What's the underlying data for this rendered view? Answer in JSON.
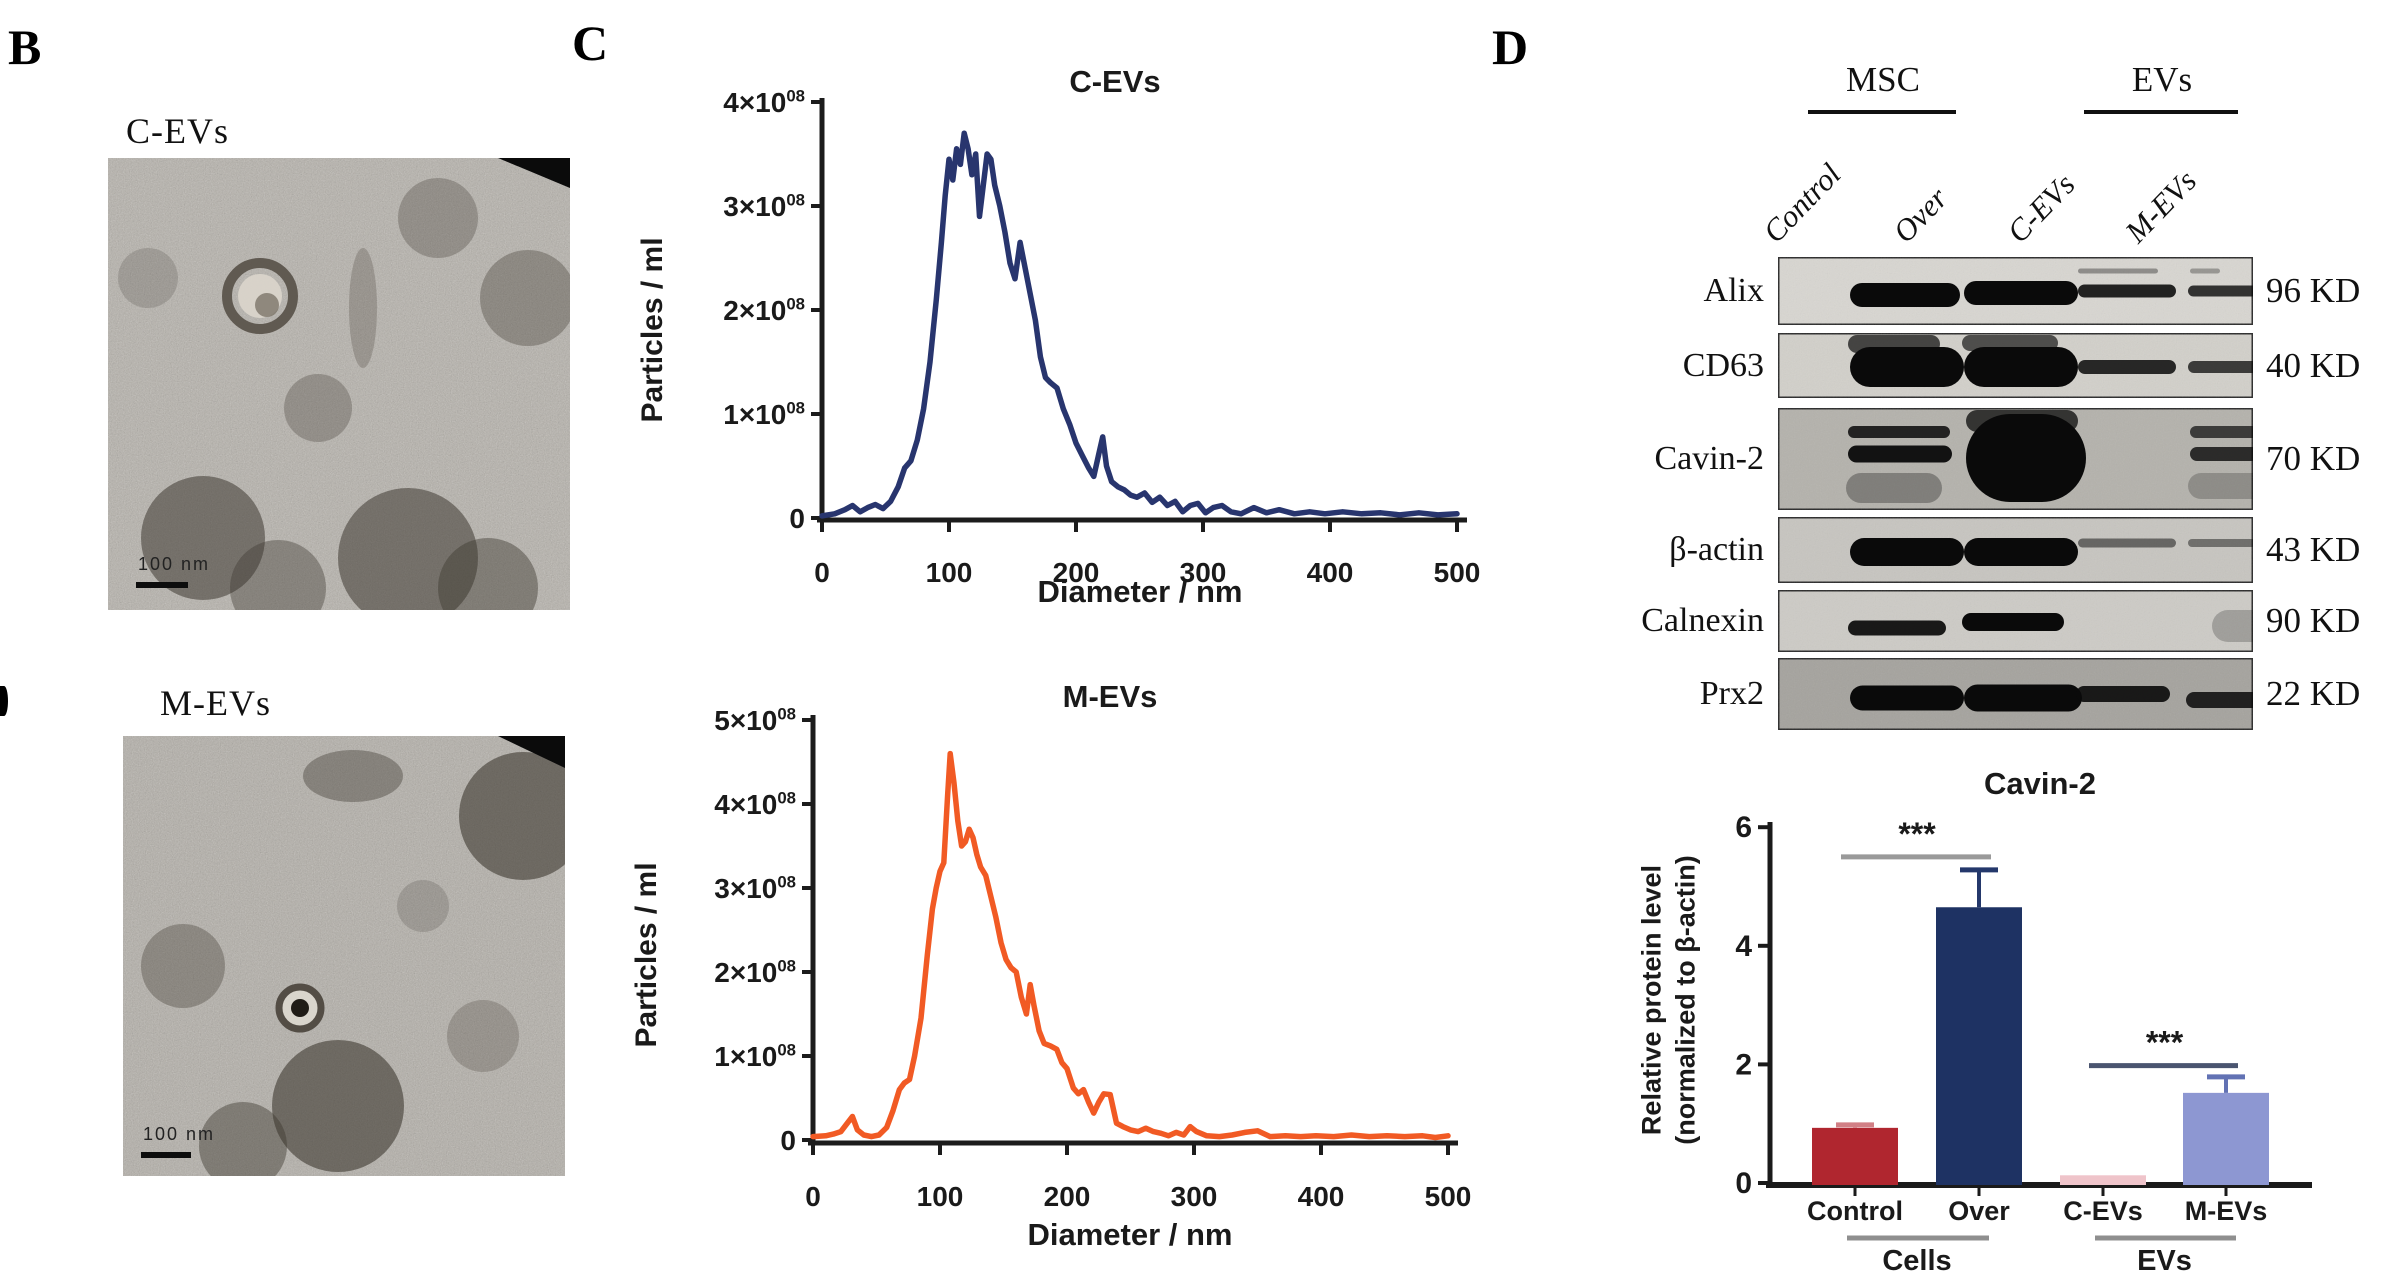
{
  "figure": {
    "background": "#ffffff"
  },
  "panels": {
    "B": {
      "label": "B",
      "images": [
        {
          "title": "C-EVs",
          "scale_bar": "100 nm",
          "description": "TEM micrograph of C-EVs with single cup-shaped vesicle"
        },
        {
          "title": "M-EVs",
          "scale_bar": "100 nm",
          "description": "TEM micrograph of M-EVs with single small vesicle"
        }
      ]
    },
    "C": {
      "label": "C"
    },
    "D": {
      "label": "D"
    }
  },
  "chart_data": [
    {
      "type": "line",
      "id": "nta-cevs",
      "title": "C-EVs",
      "xlabel": "Diameter / nm",
      "ylabel": "Particles / ml",
      "line_color": "#28356e",
      "axis_color": "#1c1c1c",
      "xlim": [
        0,
        500
      ],
      "ylim_1e8": [
        0,
        4
      ],
      "xticks": [
        "0",
        "100",
        "200",
        "300",
        "400",
        "500"
      ],
      "yticks": [
        "0",
        "1×10^08",
        "2×10^08",
        "3×10^08",
        "4×10^08"
      ],
      "grid": false,
      "points_1e8": [
        [
          0,
          0.02
        ],
        [
          10,
          0.04
        ],
        [
          18,
          0.08
        ],
        [
          24,
          0.12
        ],
        [
          30,
          0.06
        ],
        [
          36,
          0.1
        ],
        [
          42,
          0.13
        ],
        [
          48,
          0.09
        ],
        [
          54,
          0.16
        ],
        [
          60,
          0.3
        ],
        [
          65,
          0.48
        ],
        [
          70,
          0.55
        ],
        [
          75,
          0.75
        ],
        [
          80,
          1.05
        ],
        [
          85,
          1.5
        ],
        [
          90,
          2.1
        ],
        [
          94,
          2.65
        ],
        [
          97,
          3.1
        ],
        [
          100,
          3.45
        ],
        [
          103,
          3.25
        ],
        [
          106,
          3.55
        ],
        [
          109,
          3.4
        ],
        [
          112,
          3.7
        ],
        [
          115,
          3.55
        ],
        [
          118,
          3.3
        ],
        [
          121,
          3.5
        ],
        [
          124,
          2.9
        ],
        [
          127,
          3.2
        ],
        [
          130,
          3.5
        ],
        [
          133,
          3.45
        ],
        [
          136,
          3.2
        ],
        [
          140,
          3.0
        ],
        [
          144,
          2.75
        ],
        [
          148,
          2.45
        ],
        [
          152,
          2.3
        ],
        [
          156,
          2.65
        ],
        [
          160,
          2.4
        ],
        [
          164,
          2.15
        ],
        [
          168,
          1.9
        ],
        [
          172,
          1.55
        ],
        [
          176,
          1.35
        ],
        [
          180,
          1.3
        ],
        [
          185,
          1.25
        ],
        [
          190,
          1.05
        ],
        [
          195,
          0.9
        ],
        [
          200,
          0.72
        ],
        [
          205,
          0.6
        ],
        [
          210,
          0.48
        ],
        [
          214,
          0.4
        ],
        [
          218,
          0.62
        ],
        [
          221,
          0.78
        ],
        [
          224,
          0.5
        ],
        [
          228,
          0.35
        ],
        [
          233,
          0.3
        ],
        [
          238,
          0.27
        ],
        [
          243,
          0.22
        ],
        [
          248,
          0.2
        ],
        [
          254,
          0.24
        ],
        [
          260,
          0.15
        ],
        [
          266,
          0.2
        ],
        [
          272,
          0.12
        ],
        [
          278,
          0.16
        ],
        [
          284,
          0.06
        ],
        [
          290,
          0.12
        ],
        [
          296,
          0.14
        ],
        [
          302,
          0.05
        ],
        [
          308,
          0.1
        ],
        [
          315,
          0.12
        ],
        [
          322,
          0.06
        ],
        [
          330,
          0.04
        ],
        [
          340,
          0.1
        ],
        [
          350,
          0.05
        ],
        [
          360,
          0.08
        ],
        [
          372,
          0.04
        ],
        [
          384,
          0.06
        ],
        [
          396,
          0.04
        ],
        [
          410,
          0.06
        ],
        [
          425,
          0.04
        ],
        [
          440,
          0.05
        ],
        [
          455,
          0.03
        ],
        [
          470,
          0.05
        ],
        [
          485,
          0.03
        ],
        [
          500,
          0.04
        ]
      ]
    },
    {
      "type": "line",
      "id": "nta-mevs",
      "title": "M-EVs",
      "xlabel": "Diameter / nm",
      "ylabel": "Particles / ml",
      "line_color": "#f15a24",
      "axis_color": "#1c1c1c",
      "xlim": [
        0,
        500
      ],
      "ylim_1e8": [
        0,
        5
      ],
      "xticks": [
        "0",
        "100",
        "200",
        "300",
        "400",
        "500"
      ],
      "yticks": [
        "0",
        "1×10^08",
        "2×10^08",
        "3×10^08",
        "4×10^08",
        "5×10^08"
      ],
      "grid": false,
      "points_1e8": [
        [
          0,
          0.04
        ],
        [
          10,
          0.05
        ],
        [
          16,
          0.07
        ],
        [
          22,
          0.1
        ],
        [
          27,
          0.2
        ],
        [
          31,
          0.28
        ],
        [
          35,
          0.12
        ],
        [
          40,
          0.06
        ],
        [
          46,
          0.04
        ],
        [
          52,
          0.06
        ],
        [
          58,
          0.15
        ],
        [
          63,
          0.35
        ],
        [
          68,
          0.6
        ],
        [
          72,
          0.68
        ],
        [
          76,
          0.72
        ],
        [
          80,
          1.0
        ],
        [
          85,
          1.45
        ],
        [
          90,
          2.2
        ],
        [
          94,
          2.75
        ],
        [
          97,
          3.0
        ],
        [
          100,
          3.2
        ],
        [
          103,
          3.3
        ],
        [
          106,
          4.1
        ],
        [
          108,
          4.6
        ],
        [
          111,
          4.25
        ],
        [
          114,
          3.8
        ],
        [
          117,
          3.5
        ],
        [
          120,
          3.55
        ],
        [
          123,
          3.7
        ],
        [
          126,
          3.6
        ],
        [
          129,
          3.4
        ],
        [
          132,
          3.25
        ],
        [
          136,
          3.15
        ],
        [
          140,
          2.9
        ],
        [
          144,
          2.65
        ],
        [
          148,
          2.35
        ],
        [
          152,
          2.15
        ],
        [
          156,
          2.05
        ],
        [
          160,
          2.0
        ],
        [
          164,
          1.7
        ],
        [
          168,
          1.5
        ],
        [
          171,
          1.85
        ],
        [
          174,
          1.6
        ],
        [
          178,
          1.3
        ],
        [
          182,
          1.15
        ],
        [
          187,
          1.12
        ],
        [
          192,
          1.08
        ],
        [
          196,
          0.92
        ],
        [
          200,
          0.85
        ],
        [
          205,
          0.62
        ],
        [
          209,
          0.55
        ],
        [
          213,
          0.6
        ],
        [
          217,
          0.45
        ],
        [
          221,
          0.32
        ],
        [
          225,
          0.45
        ],
        [
          229,
          0.55
        ],
        [
          234,
          0.54
        ],
        [
          239,
          0.2
        ],
        [
          244,
          0.16
        ],
        [
          250,
          0.12
        ],
        [
          256,
          0.1
        ],
        [
          262,
          0.14
        ],
        [
          268,
          0.1
        ],
        [
          274,
          0.08
        ],
        [
          280,
          0.05
        ],
        [
          286,
          0.09
        ],
        [
          292,
          0.06
        ],
        [
          297,
          0.16
        ],
        [
          302,
          0.1
        ],
        [
          310,
          0.05
        ],
        [
          320,
          0.04
        ],
        [
          330,
          0.06
        ],
        [
          340,
          0.09
        ],
        [
          350,
          0.11
        ],
        [
          360,
          0.04
        ],
        [
          372,
          0.05
        ],
        [
          384,
          0.04
        ],
        [
          396,
          0.05
        ],
        [
          410,
          0.04
        ],
        [
          424,
          0.06
        ],
        [
          438,
          0.04
        ],
        [
          452,
          0.05
        ],
        [
          466,
          0.04
        ],
        [
          480,
          0.05
        ],
        [
          490,
          0.03
        ],
        [
          500,
          0.05
        ]
      ]
    },
    {
      "type": "bar",
      "id": "cavin2-bar",
      "title": "Cavin-2",
      "ylabel": "Relative protein level\n(normalized to β-actin)",
      "categories": [
        "Control",
        "Over",
        "C-EVs",
        "M-EVs"
      ],
      "values": [
        0.93,
        4.65,
        0.13,
        1.52
      ],
      "errors_plus": [
        0.05,
        0.63,
        0,
        0.27
      ],
      "bar_colors": [
        "#b0262f",
        "#1e3263",
        "#efc4ca",
        "#8d97d2"
      ],
      "error_colors": [
        "#d17f85",
        "#24386b",
        "#efc4ca",
        "#6272b4"
      ],
      "axis_color": "#1a1a1a",
      "ylim": [
        0,
        6
      ],
      "yticks": [
        "0",
        "2",
        "4",
        "6"
      ],
      "grid": false,
      "significance": [
        {
          "stars": "***",
          "between": [
            0,
            1
          ],
          "height": 5.5,
          "color": "#9a9a9a"
        },
        {
          "stars": "***",
          "between": [
            2,
            3
          ],
          "height": 1.98,
          "color": "#4a5570"
        }
      ],
      "groups": [
        {
          "label": "Cells",
          "span": [
            0,
            1
          ]
        },
        {
          "label": "EVs",
          "span": [
            2,
            3
          ]
        }
      ]
    }
  ],
  "western_blot": {
    "group_headers": [
      {
        "label": "MSC",
        "lanes": [
          0,
          1
        ]
      },
      {
        "label": "EVs",
        "lanes": [
          2,
          3
        ]
      }
    ],
    "lanes": [
      "Control",
      "Over",
      "C-EVs",
      "M-EVs"
    ],
    "rows": [
      {
        "protein": "Alix",
        "mw": "96 KD",
        "bg": "#d8d6d1",
        "bands": [
          {
            "x": 72,
            "y": 38,
            "w": 110,
            "t": 24,
            "o": 1
          },
          {
            "x": 186,
            "y": 36,
            "w": 114,
            "t": 24,
            "o": 1
          },
          {
            "x": 300,
            "y": 34,
            "w": 98,
            "t": 13,
            "o": 0.88
          },
          {
            "x": 410,
            "y": 34,
            "w": 96,
            "t": 11,
            "o": 0.8
          },
          {
            "x": 300,
            "y": 14,
            "w": 80,
            "t": 5,
            "o": 0.35
          },
          {
            "x": 412,
            "y": 14,
            "w": 30,
            "t": 5,
            "o": 0.3
          }
        ]
      },
      {
        "protein": "CD63",
        "mw": "40 KD",
        "bg": "#d2d0ca",
        "bands": [
          {
            "x": 72,
            "y": 34,
            "w": 114,
            "t": 40,
            "o": 1
          },
          {
            "x": 70,
            "y": 10,
            "w": 92,
            "t": 18,
            "o": 0.7
          },
          {
            "x": 186,
            "y": 34,
            "w": 114,
            "t": 40,
            "o": 1
          },
          {
            "x": 184,
            "y": 8,
            "w": 96,
            "t": 16,
            "o": 0.65
          },
          {
            "x": 300,
            "y": 34,
            "w": 98,
            "t": 14,
            "o": 0.85
          },
          {
            "x": 410,
            "y": 34,
            "w": 94,
            "t": 12,
            "o": 0.75
          }
        ]
      },
      {
        "protein": "Cavin-2",
        "mw": "70 KD",
        "bg": "#b4b2ac",
        "bands": [
          {
            "x": 70,
            "y": 24,
            "w": 102,
            "t": 12,
            "o": 0.85
          },
          {
            "x": 70,
            "y": 46,
            "w": 104,
            "t": 17,
            "o": 0.95
          },
          {
            "x": 68,
            "y": 80,
            "w": 96,
            "t": 30,
            "o": 0.3
          },
          {
            "x": 188,
            "y": 50,
            "w": 120,
            "t": 88,
            "o": 1
          },
          {
            "x": 188,
            "y": 8,
            "w": 112,
            "t": 22,
            "o": 0.75
          },
          {
            "x": 412,
            "y": 24,
            "w": 102,
            "t": 12,
            "o": 0.7
          },
          {
            "x": 412,
            "y": 46,
            "w": 102,
            "t": 14,
            "o": 0.8
          },
          {
            "x": 410,
            "y": 78,
            "w": 92,
            "t": 26,
            "o": 0.22
          }
        ]
      },
      {
        "protein": "β-actin",
        "mw": "43 KD",
        "bg": "#c7c5c0",
        "bands": [
          {
            "x": 72,
            "y": 35,
            "w": 114,
            "t": 28,
            "o": 1
          },
          {
            "x": 186,
            "y": 35,
            "w": 114,
            "t": 28,
            "o": 1
          },
          {
            "x": 300,
            "y": 26,
            "w": 98,
            "t": 9,
            "o": 0.5
          },
          {
            "x": 410,
            "y": 26,
            "w": 96,
            "t": 8,
            "o": 0.45
          }
        ]
      },
      {
        "protein": "Calnexin",
        "mw": "90 KD",
        "bg": "#cdcbc6",
        "bands": [
          {
            "x": 70,
            "y": 38,
            "w": 98,
            "t": 15,
            "o": 0.92
          },
          {
            "x": 184,
            "y": 32,
            "w": 102,
            "t": 18,
            "o": 1
          },
          {
            "x": 434,
            "y": 36,
            "w": 58,
            "t": 32,
            "o": 0.22
          }
        ]
      },
      {
        "protein": "Prx2",
        "mw": "22 KD",
        "bg": "#a5a39e",
        "bands": [
          {
            "x": 72,
            "y": 40,
            "w": 114,
            "t": 25,
            "o": 1
          },
          {
            "x": 186,
            "y": 40,
            "w": 118,
            "t": 27,
            "o": 1
          },
          {
            "x": 298,
            "y": 36,
            "w": 94,
            "t": 16,
            "o": 0.9
          },
          {
            "x": 408,
            "y": 42,
            "w": 90,
            "t": 16,
            "o": 0.85
          }
        ]
      }
    ]
  }
}
